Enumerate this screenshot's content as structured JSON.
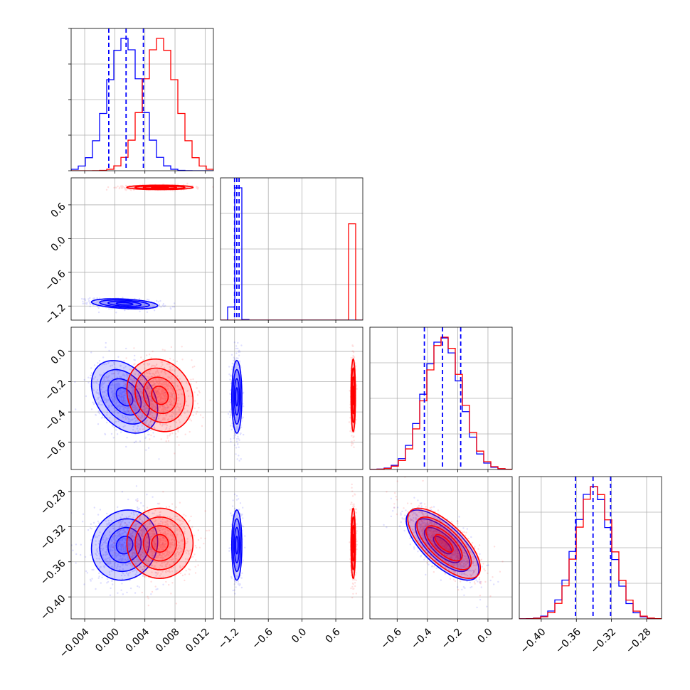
{
  "colors": {
    "series_a": "#0000ff",
    "series_b": "#ff0000",
    "grid": "#b0b0b0",
    "axes": "#000000"
  },
  "chart_data": {
    "type": "corner",
    "dimensions": [
      {
        "range": [
          -0.0058,
          0.0131
        ],
        "ticks": [
          -0.004,
          0.0,
          0.004,
          0.008,
          0.012
        ],
        "tick_labels": [
          "−0.004",
          "0.000",
          "0.004",
          "0.008",
          "0.012"
        ]
      },
      {
        "range": [
          -1.45,
          1.08
        ],
        "ticks": [
          -1.2,
          -0.6,
          0.0,
          0.6
        ],
        "tick_labels": [
          "−1.2",
          "−0.6",
          "0.0",
          "0.6"
        ]
      },
      {
        "range": [
          -0.78,
          0.16
        ],
        "ticks": [
          -0.6,
          -0.4,
          -0.2,
          0.0
        ],
        "tick_labels": [
          "−0.6",
          "−0.4",
          "−0.2",
          "0.0"
        ]
      },
      {
        "range": [
          -0.425,
          -0.263
        ],
        "ticks": [
          -0.4,
          -0.36,
          -0.32,
          -0.28
        ],
        "tick_labels": [
          "−0.40",
          "−0.36",
          "−0.32",
          "−0.28"
        ]
      }
    ],
    "series": [
      {
        "color": "#0000ff",
        "means": [
          0.0013,
          -1.16,
          -0.3,
          -0.341
        ],
        "sds": [
          0.0022,
          0.045,
          0.12,
          0.02
        ],
        "corr": [
          [
            1,
            -0.35,
            -0.35,
            0.1
          ],
          [
            -0.35,
            1,
            0,
            0
          ],
          [
            -0.35,
            0,
            1,
            -0.7
          ],
          [
            0.1,
            0,
            -0.7,
            1
          ]
        ],
        "quantiles": [
          [
            -0.0008,
            0.0015,
            0.0038
          ],
          [
            -1.2,
            -1.16,
            -1.12
          ],
          [
            -0.42,
            -0.3,
            -0.18
          ],
          [
            -0.361,
            -0.341,
            -0.321
          ]
        ]
      },
      {
        "color": "#ff0000",
        "means": [
          0.006,
          0.91,
          -0.29,
          -0.339
        ],
        "sds": [
          0.0022,
          0.02,
          0.12,
          0.02
        ],
        "corr": [
          [
            1,
            0,
            -0.15,
            0
          ],
          [
            0,
            1,
            0,
            0
          ],
          [
            -0.15,
            0,
            1,
            -0.7
          ],
          [
            0,
            0,
            -0.7,
            1
          ]
        ]
      }
    ]
  }
}
